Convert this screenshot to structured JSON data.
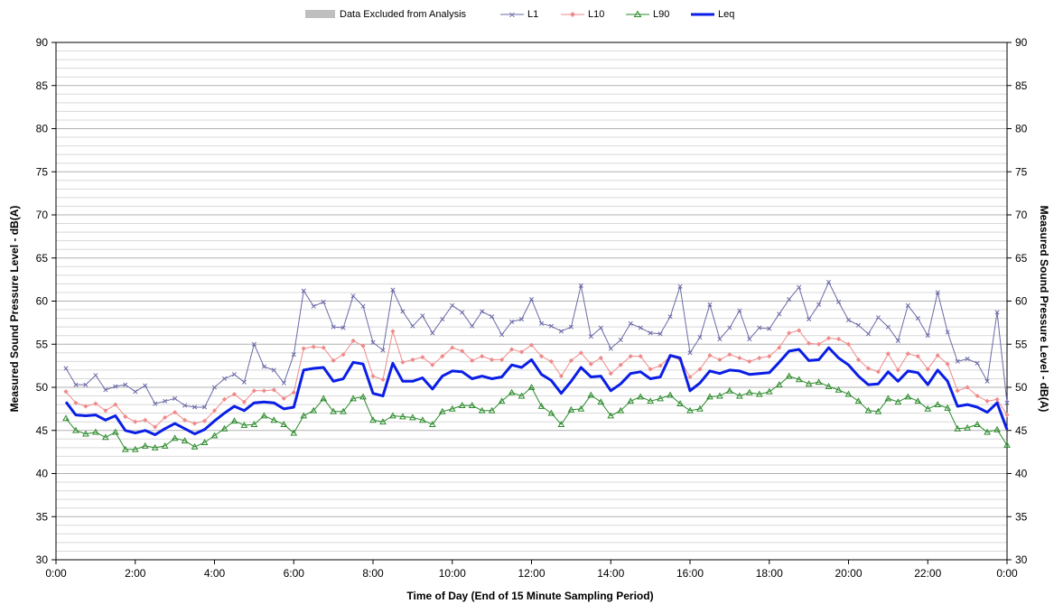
{
  "chart_data": {
    "type": "line",
    "title": "",
    "xlabel": "Time of Day (End of 15 Minute Sampling Period)",
    "ylabel_left": "Measured Sound Pressure Level - dB(A)",
    "ylabel_right": "Measured Sound Pressure Level - dB(A)",
    "ylim": [
      30,
      90
    ],
    "y_ticks": [
      "30",
      "35",
      "40",
      "45",
      "50",
      "55",
      "60",
      "65",
      "70",
      "75",
      "80",
      "85",
      "90"
    ],
    "x_ticks": [
      "0:00",
      "2:00",
      "4:00",
      "6:00",
      "8:00",
      "10:00",
      "12:00",
      "14:00",
      "16:00",
      "18:00",
      "20:00",
      "22:00",
      "0:00"
    ],
    "grid": "horizontal, 1 dB minor",
    "legend_position": "top-center",
    "legend": {
      "excluded": "Data Excluded from Analysis",
      "l1": "L1",
      "l10": "L10",
      "l90": "L90",
      "leq": "Leq"
    },
    "series": [
      {
        "name": "L1",
        "color": "#6b6aa8",
        "marker": "x",
        "values": [
          52.2,
          50.3,
          50.3,
          51.4,
          49.7,
          50.1,
          50.3,
          49.5,
          50.2,
          48.1,
          48.4,
          48.7,
          47.9,
          47.7,
          47.7,
          50.0,
          51.0,
          51.5,
          50.6,
          55.0,
          52.4,
          52.0,
          50.5,
          53.8,
          61.2,
          59.4,
          59.9,
          57.0,
          56.9,
          60.6,
          59.4,
          55.2,
          54.3,
          61.3,
          58.8,
          57.1,
          58.3,
          56.3,
          57.9,
          59.5,
          58.7,
          57.1,
          58.8,
          58.2,
          56.1,
          57.6,
          57.9,
          60.2,
          57.4,
          57.1,
          56.5,
          57.0,
          61.8,
          55.9,
          56.9,
          54.5,
          55.5,
          57.4,
          56.9,
          56.3,
          56.2,
          58.2,
          61.7,
          54.0,
          55.8,
          59.6,
          55.6,
          56.9,
          58.9,
          55.6,
          56.9,
          56.8,
          58.5,
          60.2,
          61.6,
          57.9,
          59.6,
          62.2,
          59.9,
          57.8,
          57.2,
          56.2,
          58.1,
          57.0,
          55.4,
          59.5,
          58.0,
          56.0,
          61.0,
          56.4,
          53.0,
          53.3,
          52.8,
          50.7,
          58.7,
          48.2
        ]
      },
      {
        "name": "L10",
        "color": "#f08a8a",
        "marker": "diamond",
        "values": [
          49.5,
          48.2,
          47.8,
          48.1,
          47.3,
          48.0,
          46.6,
          46.0,
          46.2,
          45.4,
          46.5,
          47.1,
          46.2,
          45.8,
          46.1,
          47.3,
          48.6,
          49.2,
          48.3,
          49.6,
          49.6,
          49.7,
          48.7,
          49.4,
          54.5,
          54.7,
          54.6,
          53.1,
          53.8,
          55.4,
          54.8,
          51.3,
          50.9,
          56.5,
          52.9,
          53.2,
          53.5,
          52.6,
          53.6,
          54.6,
          54.2,
          53.1,
          53.6,
          53.2,
          53.2,
          54.4,
          54.1,
          54.9,
          53.6,
          53.0,
          51.3,
          53.1,
          54.0,
          52.7,
          53.4,
          51.6,
          52.6,
          53.6,
          53.6,
          52.1,
          52.5,
          53.6,
          53.2,
          51.2,
          52.1,
          53.7,
          53.2,
          53.8,
          53.4,
          53.0,
          53.4,
          53.6,
          54.6,
          56.3,
          56.6,
          55.1,
          55.0,
          55.7,
          55.6,
          55.0,
          53.2,
          52.2,
          51.8,
          53.9,
          52.0,
          53.9,
          53.6,
          52.1,
          53.7,
          52.7,
          49.6,
          50.0,
          49.0,
          48.4,
          48.6,
          46.8
        ]
      },
      {
        "name": "L90",
        "color": "#2a8a2a",
        "marker": "triangle",
        "values": [
          46.4,
          45.0,
          44.6,
          44.8,
          44.2,
          44.8,
          42.8,
          42.8,
          43.2,
          43.0,
          43.2,
          44.1,
          43.8,
          43.1,
          43.6,
          44.4,
          45.2,
          46.1,
          45.6,
          45.7,
          46.7,
          46.2,
          45.7,
          44.7,
          46.7,
          47.3,
          48.7,
          47.2,
          47.2,
          48.7,
          48.9,
          46.2,
          46.0,
          46.7,
          46.6,
          46.5,
          46.2,
          45.7,
          47.2,
          47.5,
          47.9,
          47.9,
          47.3,
          47.3,
          48.4,
          49.4,
          49.0,
          50.0,
          47.8,
          47.0,
          45.7,
          47.4,
          47.5,
          49.1,
          48.3,
          46.7,
          47.3,
          48.4,
          48.9,
          48.4,
          48.7,
          49.1,
          48.1,
          47.3,
          47.5,
          48.9,
          49.0,
          49.6,
          49.0,
          49.4,
          49.2,
          49.5,
          50.3,
          51.3,
          50.9,
          50.4,
          50.6,
          50.1,
          49.7,
          49.2,
          48.4,
          47.3,
          47.2,
          48.7,
          48.3,
          48.9,
          48.4,
          47.5,
          48.0,
          47.6,
          45.2,
          45.3,
          45.7,
          44.8,
          45.1,
          43.3
        ]
      },
      {
        "name": "Leq",
        "color": "#0a1ee6",
        "marker": "none",
        "values": [
          48.3,
          46.8,
          46.7,
          46.8,
          46.2,
          46.7,
          45.0,
          44.7,
          45.0,
          44.5,
          45.2,
          45.8,
          45.2,
          44.6,
          45.1,
          46.1,
          47.0,
          47.8,
          47.3,
          48.2,
          48.3,
          48.2,
          47.5,
          47.7,
          52.0,
          52.2,
          52.3,
          50.7,
          51.0,
          52.9,
          52.7,
          49.3,
          49.0,
          52.8,
          50.7,
          50.7,
          51.1,
          49.8,
          51.3,
          51.9,
          51.8,
          51.0,
          51.3,
          51.0,
          51.2,
          52.6,
          52.3,
          53.2,
          51.5,
          50.8,
          49.3,
          50.7,
          52.3,
          51.2,
          51.3,
          49.6,
          50.4,
          51.6,
          51.8,
          51.0,
          51.2,
          53.7,
          53.4,
          49.6,
          50.5,
          51.9,
          51.6,
          52.0,
          51.9,
          51.5,
          51.6,
          51.7,
          52.9,
          54.2,
          54.4,
          53.1,
          53.2,
          54.6,
          53.4,
          52.6,
          51.3,
          50.3,
          50.4,
          51.8,
          50.7,
          51.9,
          51.7,
          50.3,
          52.0,
          50.7,
          47.8,
          48.0,
          47.7,
          47.1,
          48.2,
          45.1
        ]
      }
    ]
  }
}
